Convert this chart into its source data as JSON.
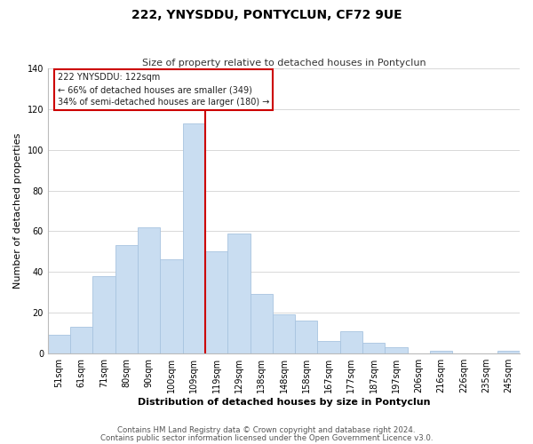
{
  "title": "222, YNYSDDU, PONTYCLUN, CF72 9UE",
  "subtitle": "Size of property relative to detached houses in Pontyclun",
  "xlabel": "Distribution of detached houses by size in Pontyclun",
  "ylabel": "Number of detached properties",
  "footer_lines": [
    "Contains HM Land Registry data © Crown copyright and database right 2024.",
    "Contains public sector information licensed under the Open Government Licence v3.0."
  ],
  "bar_labels": [
    "51sqm",
    "61sqm",
    "71sqm",
    "80sqm",
    "90sqm",
    "100sqm",
    "109sqm",
    "119sqm",
    "129sqm",
    "138sqm",
    "148sqm",
    "158sqm",
    "167sqm",
    "177sqm",
    "187sqm",
    "197sqm",
    "206sqm",
    "216sqm",
    "226sqm",
    "235sqm",
    "245sqm"
  ],
  "bar_values": [
    9,
    13,
    38,
    53,
    62,
    46,
    113,
    50,
    59,
    29,
    19,
    16,
    6,
    11,
    5,
    3,
    0,
    1,
    0,
    0,
    1
  ],
  "bar_color": "#c9ddf1",
  "bar_edge_color": "#a8c4e0",
  "highlight_line_color": "#cc0000",
  "annotation_box_text_line1": "222 YNYSDDU: 122sqm",
  "annotation_box_text_line2": "← 66% of detached houses are smaller (349)",
  "annotation_box_text_line3": "34% of semi-detached houses are larger (180) →",
  "ylim": [
    0,
    140
  ],
  "yticks": [
    0,
    20,
    40,
    60,
    80,
    100,
    120,
    140
  ],
  "background_color": "#ffffff",
  "grid_color": "#d8d8d8",
  "title_fontsize": 10,
  "subtitle_fontsize": 8,
  "xlabel_fontsize": 8,
  "ylabel_fontsize": 8,
  "tick_fontsize": 7
}
